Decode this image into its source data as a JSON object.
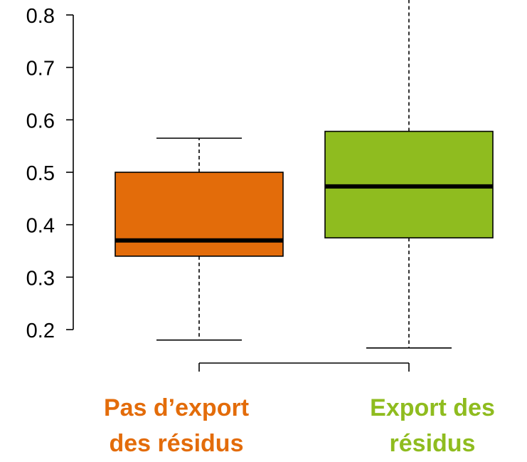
{
  "chart_data": {
    "type": "boxplot",
    "ylim": [
      0.2,
      0.8
    ],
    "y_ticks": [
      0.2,
      0.3,
      0.4,
      0.5,
      0.6,
      0.7,
      0.8
    ],
    "y_tick_labels": [
      "0.2",
      "0.3",
      "0.4",
      "0.5",
      "0.6",
      "0.7",
      "0.8"
    ],
    "categories": [
      {
        "label_line1": "Pas d’export",
        "label_line2": "des résidus",
        "color": "#e36c0a",
        "whisker_low": 0.18,
        "q1": 0.34,
        "median": 0.37,
        "q3": 0.5,
        "whisker_high": 0.565
      },
      {
        "label_line1": "Export des",
        "label_line2": "résidus",
        "color": "#8fbc1f",
        "whisker_low": 0.165,
        "q1": 0.375,
        "median": 0.473,
        "q3": 0.578,
        "whisker_high": 0.85
      }
    ],
    "grid": false,
    "legend": "none"
  }
}
